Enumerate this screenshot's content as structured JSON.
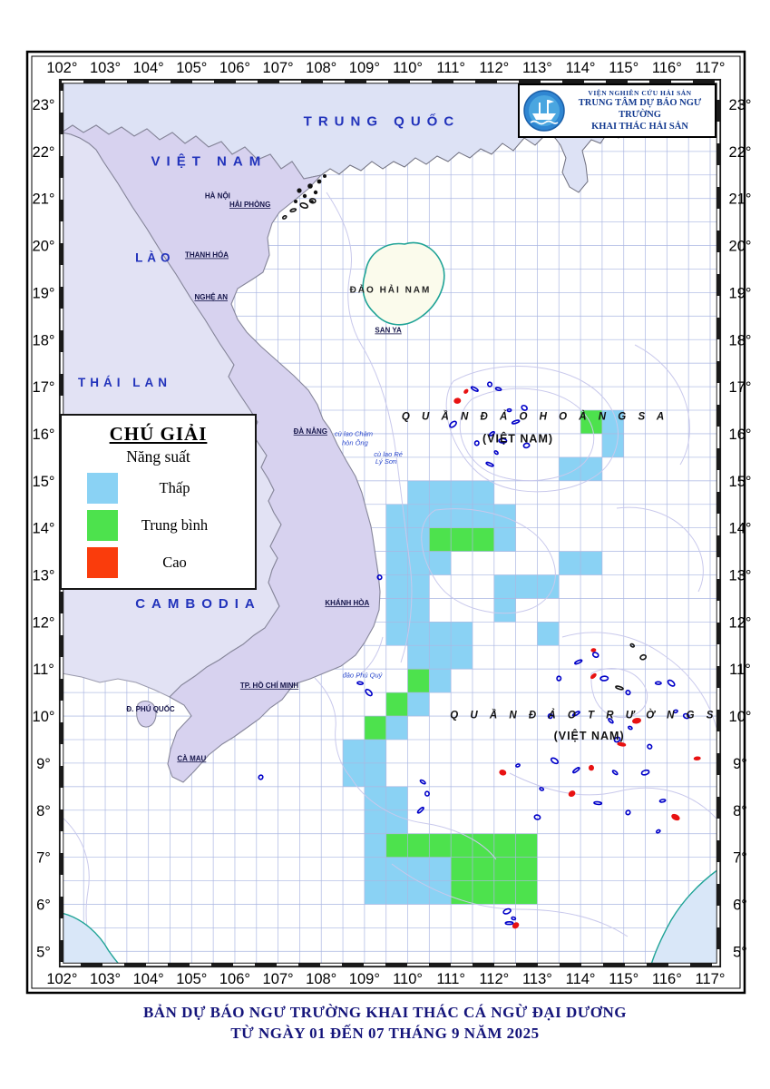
{
  "header": {
    "org_line1": "VIỆN NGHIÊN CỨU HẢI SẢN",
    "org_line2": "TRUNG TÂM DỰ BÁO NGƯ TRƯỜNG",
    "org_line3": "KHAI THÁC HẢI SẢN",
    "logo_icon": "ship-logo-icon"
  },
  "title": {
    "line1": "BẢN DỰ BÁO NGƯ TRƯỜNG KHAI THÁC CÁ NGỪ ĐẠI DƯƠNG",
    "line2": "TỪ NGÀY 01 ĐẾN 07 THÁNG 9 NĂM 2025"
  },
  "legend": {
    "title": "CHÚ GIẢI",
    "subtitle": "Năng suất",
    "items": [
      {
        "label": "Thấp",
        "color": "#8AD2F4",
        "key": "low"
      },
      {
        "label": "Trung bình",
        "color": "#4DE24D",
        "key": "medium"
      },
      {
        "label": "Cao",
        "color": "#FA3C0C",
        "key": "high"
      }
    ]
  },
  "axes": {
    "lon_ticks": [
      "102°",
      "103°",
      "104°",
      "105°",
      "106°",
      "107°",
      "108°",
      "109°",
      "110°",
      "111°",
      "112°",
      "113°",
      "114°",
      "115°",
      "116°",
      "117°"
    ],
    "lat_ticks": [
      "23°",
      "22°",
      "21°",
      "20°",
      "19°",
      "18°",
      "17°",
      "16°",
      "15°",
      "14°",
      "13°",
      "12°",
      "11°",
      "10°",
      "9°",
      "8°",
      "7°",
      "6°",
      "5°"
    ]
  },
  "map_labels": {
    "countries": [
      {
        "text": "TRUNG QUỐC",
        "lon": 109.4,
        "lat": 22.55,
        "small": false
      },
      {
        "text": "VIỆT NAM",
        "lon": 105.4,
        "lat": 21.7,
        "small": false
      },
      {
        "text": "LÀO",
        "lon": 104.15,
        "lat": 19.65,
        "small": true
      },
      {
        "text": "THÁI LAN",
        "lon": 103.45,
        "lat": 17.0,
        "small": true
      },
      {
        "text": "CAMBODIA",
        "lon": 105.15,
        "lat": 12.3,
        "small": false
      }
    ],
    "archipelagos": [
      {
        "text": "Q U Ầ N   Đ Ả O   H O À N G   S A",
        "sub": "(VIỆT NAM)",
        "lon": 112.95,
        "lat": 16.3,
        "sublon": 112.55,
        "sublat": 15.82
      },
      {
        "text": "Q U Ầ N   Đ Ả O   T R Ư Ờ N G   S A",
        "sub": "(VIỆT NAM)",
        "lon": 114.3,
        "lat": 9.95,
        "sublon": 114.2,
        "sublat": 9.5
      }
    ],
    "cities": [
      {
        "text": "HÀ NỘI",
        "lon": 105.6,
        "lat": 21.0,
        "u": false,
        "big": false
      },
      {
        "text": "HẢI PHÒNG",
        "lon": 106.35,
        "lat": 20.82,
        "u": true,
        "big": false
      },
      {
        "text": "THANH HÓA",
        "lon": 105.35,
        "lat": 19.75,
        "u": true,
        "big": false
      },
      {
        "text": "NGHỆ AN",
        "lon": 105.45,
        "lat": 18.85,
        "u": true,
        "big": false
      },
      {
        "text": "ĐÀ NẴNG",
        "lon": 107.75,
        "lat": 16.0,
        "u": true,
        "big": false
      },
      {
        "text": "KHÁNH HÒA",
        "lon": 108.6,
        "lat": 12.35,
        "u": true,
        "big": false
      },
      {
        "text": "TP. HỒ CHÍ MINH",
        "lon": 106.8,
        "lat": 10.6,
        "u": true,
        "big": false
      },
      {
        "text": "CÀ MAU",
        "lon": 105.0,
        "lat": 9.05,
        "u": true,
        "big": false
      },
      {
        "text": "Đ. PHÚ QUỐC",
        "lon": 104.05,
        "lat": 10.1,
        "u": false,
        "big": false
      },
      {
        "text": "ĐẢO HẢI NAM",
        "lon": 109.6,
        "lat": 19.0,
        "u": false,
        "big": true
      },
      {
        "text": "SAN YA",
        "lon": 109.55,
        "lat": 18.15,
        "u": true,
        "big": false
      }
    ],
    "islets": [
      {
        "text": "cù lao Chàm",
        "lon": 108.75,
        "lat": 15.95
      },
      {
        "text": "hòn Ông",
        "lon": 108.78,
        "lat": 15.76
      },
      {
        "text": "cù lao Ré",
        "lon": 109.55,
        "lat": 15.52
      },
      {
        "text": "Lý Sơn",
        "lon": 109.5,
        "lat": 15.36
      },
      {
        "text": "đảo Phú Quý",
        "lon": 108.95,
        "lat": 10.82
      }
    ]
  },
  "fishing_cells": {
    "cell_size_deg": 0.5,
    "low": [
      [
        114.5,
        16
      ],
      [
        114.5,
        15.5
      ],
      [
        113.5,
        15
      ],
      [
        114,
        15
      ],
      [
        110,
        14.5
      ],
      [
        110.5,
        14.5
      ],
      [
        111,
        14.5
      ],
      [
        111.5,
        14.5
      ],
      [
        109.5,
        14
      ],
      [
        110,
        14
      ],
      [
        110.5,
        14
      ],
      [
        111,
        14
      ],
      [
        111.5,
        14
      ],
      [
        112,
        14
      ],
      [
        109.5,
        13.5
      ],
      [
        110,
        13.5
      ],
      [
        112,
        13.5
      ],
      [
        109.5,
        13
      ],
      [
        110,
        13
      ],
      [
        110.5,
        13
      ],
      [
        113.5,
        13
      ],
      [
        114,
        13
      ],
      [
        109.5,
        12.5
      ],
      [
        110,
        12.5
      ],
      [
        112,
        12.5
      ],
      [
        112.5,
        12.5
      ],
      [
        113,
        12.5
      ],
      [
        109.5,
        12
      ],
      [
        110,
        12
      ],
      [
        112,
        12
      ],
      [
        109.5,
        11.5
      ],
      [
        110,
        11.5
      ],
      [
        110.5,
        11.5
      ],
      [
        111,
        11.5
      ],
      [
        113,
        11.5
      ],
      [
        110,
        11
      ],
      [
        110.5,
        11
      ],
      [
        111,
        11
      ],
      [
        110.5,
        10.5
      ],
      [
        110,
        10
      ],
      [
        109.5,
        9.5
      ],
      [
        108.5,
        9
      ],
      [
        109,
        9
      ],
      [
        108.5,
        8.5
      ],
      [
        109,
        8.5
      ],
      [
        109,
        8
      ],
      [
        109.5,
        8
      ],
      [
        109,
        7.5
      ],
      [
        109.5,
        7.5
      ],
      [
        109,
        7
      ],
      [
        109,
        6.5
      ],
      [
        109.5,
        6.5
      ],
      [
        110,
        6.5
      ],
      [
        110.5,
        6.5
      ],
      [
        109,
        6
      ],
      [
        109.5,
        6
      ],
      [
        110,
        6
      ],
      [
        110.5,
        6
      ]
    ],
    "medium": [
      [
        114,
        16
      ],
      [
        110.5,
        13.5
      ],
      [
        111,
        13.5
      ],
      [
        111.5,
        13.5
      ],
      [
        110,
        10.5
      ],
      [
        109.5,
        10
      ],
      [
        109,
        9.5
      ],
      [
        109.5,
        7
      ],
      [
        110,
        7
      ],
      [
        110.5,
        7
      ],
      [
        111,
        7
      ],
      [
        111.5,
        7
      ],
      [
        112,
        7
      ],
      [
        112.5,
        7
      ],
      [
        111,
        6.5
      ],
      [
        111.5,
        6.5
      ],
      [
        112,
        6.5
      ],
      [
        112.5,
        6.5
      ],
      [
        111,
        6
      ],
      [
        111.5,
        6
      ],
      [
        112,
        6
      ],
      [
        112.5,
        6
      ]
    ],
    "high": []
  },
  "island_markers": [
    [
      111.35,
      16.9,
      "red"
    ],
    [
      111.15,
      16.7,
      "red"
    ],
    [
      111.55,
      16.95,
      "navy"
    ],
    [
      111.9,
      17.05,
      "navy"
    ],
    [
      112.1,
      16.95,
      "navy"
    ],
    [
      111.05,
      16.2,
      "navy"
    ],
    [
      112.35,
      16.5,
      "navy"
    ],
    [
      112.7,
      16.55,
      "navy"
    ],
    [
      112.5,
      16.25,
      "navy"
    ],
    [
      111.6,
      15.8,
      "navy"
    ],
    [
      111.95,
      16.0,
      "navy"
    ],
    [
      112.2,
      15.85,
      "navy"
    ],
    [
      112.05,
      15.6,
      "navy"
    ],
    [
      112.75,
      15.75,
      "navy"
    ],
    [
      111.9,
      15.35,
      "navy"
    ],
    [
      109.35,
      12.95,
      "navy"
    ],
    [
      108.9,
      10.7,
      "navy"
    ],
    [
      109.1,
      10.5,
      "navy"
    ],
    [
      114.3,
      11.4,
      "red"
    ],
    [
      114.35,
      11.3,
      "navy"
    ],
    [
      113.95,
      11.15,
      "navy"
    ],
    [
      113.5,
      10.8,
      "navy"
    ],
    [
      114.3,
      10.85,
      "red"
    ],
    [
      114.55,
      10.8,
      "navy"
    ],
    [
      115.2,
      11.5,
      "black"
    ],
    [
      115.45,
      11.25,
      "black"
    ],
    [
      114.9,
      10.6,
      "black"
    ],
    [
      115.1,
      10.5,
      "navy"
    ],
    [
      115.8,
      10.7,
      "navy"
    ],
    [
      116.1,
      10.7,
      "navy"
    ],
    [
      116.2,
      10.1,
      "navy"
    ],
    [
      116.45,
      10.0,
      "navy"
    ],
    [
      113.9,
      10.05,
      "navy"
    ],
    [
      113.3,
      10.0,
      "navy"
    ],
    [
      114.7,
      9.9,
      "navy"
    ],
    [
      115.3,
      9.9,
      "red"
    ],
    [
      115.15,
      9.75,
      "navy"
    ],
    [
      114.85,
      9.5,
      "navy"
    ],
    [
      114.95,
      9.4,
      "red"
    ],
    [
      115.6,
      9.35,
      "navy"
    ],
    [
      116.7,
      9.1,
      "red"
    ],
    [
      113.4,
      9.05,
      "navy"
    ],
    [
      112.55,
      8.95,
      "navy"
    ],
    [
      112.2,
      8.8,
      "red"
    ],
    [
      113.9,
      8.85,
      "navy"
    ],
    [
      114.25,
      8.9,
      "red"
    ],
    [
      114.8,
      8.8,
      "navy"
    ],
    [
      115.5,
      8.8,
      "navy"
    ],
    [
      113.1,
      8.45,
      "navy"
    ],
    [
      113.8,
      8.35,
      "red"
    ],
    [
      114.4,
      8.15,
      "navy"
    ],
    [
      115.1,
      7.95,
      "navy"
    ],
    [
      115.9,
      8.2,
      "navy"
    ],
    [
      116.2,
      7.85,
      "red"
    ],
    [
      115.8,
      7.55,
      "navy"
    ],
    [
      113.0,
      7.85,
      "navy"
    ],
    [
      110.3,
      8.0,
      "navy"
    ],
    [
      110.45,
      8.35,
      "navy"
    ],
    [
      110.35,
      8.6,
      "navy"
    ],
    [
      112.3,
      5.85,
      "navy"
    ],
    [
      112.45,
      5.7,
      "navy"
    ],
    [
      112.5,
      5.55,
      "red"
    ],
    [
      112.35,
      5.6,
      "navy"
    ],
    [
      106.6,
      8.7,
      "navy"
    ],
    [
      107.35,
      20.75,
      "black"
    ],
    [
      107.6,
      20.85,
      "black"
    ],
    [
      107.15,
      20.6,
      "black"
    ],
    [
      107.8,
      20.95,
      "black"
    ]
  ],
  "colors": {
    "sea": "#ffffff",
    "grid": "#aab6e2",
    "contour": "#c9c9ec",
    "land_vietnam": "#d7d2ef",
    "land_other": "#e2e2f4",
    "land_china": "#dde2f5",
    "hainan_fill": "#fbfbec",
    "teal_coast": "#1fa396",
    "island_navy": "#0000c8",
    "island_red": "#e81212",
    "island_black": "#141414",
    "corner_sea": "#d9e7f8"
  }
}
